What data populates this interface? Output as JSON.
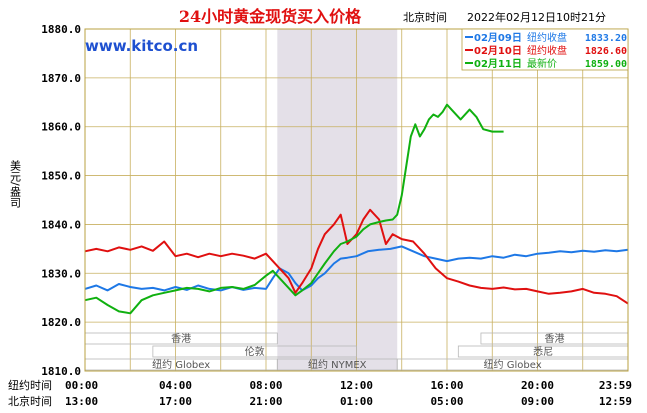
{
  "chart_data": {
    "type": "line",
    "title": "24小时黄金现货买入价格",
    "location_label": "北京时间",
    "timestamp": "2022年02月12日10时21分",
    "website": "www.kitco.cn",
    "ylabel": "美元/盎司",
    "ylim": [
      1810,
      1880
    ],
    "yticks": [
      "1810.0",
      "1820.0",
      "1830.0",
      "1840.0",
      "1850.0",
      "1860.0",
      "1870.0",
      "1880.0"
    ],
    "x_row1_label": "纽约时间",
    "x_row2_label": "北京时间",
    "x_ticks_ny": [
      "00:00",
      "04:00",
      "08:00",
      "12:00",
      "16:00",
      "20:00",
      "23:59"
    ],
    "x_ticks_bj": [
      "13:00",
      "17:00",
      "21:00",
      "01:00",
      "05:00",
      "09:00",
      "12:59"
    ],
    "session_shading": [
      8.5,
      13.8
    ],
    "markets_upper": [
      {
        "label": "香港",
        "start": 0,
        "end": 8.5
      },
      {
        "label": "香港",
        "start": 17.5,
        "end": 24
      }
    ],
    "markets_middle": [
      {
        "label": "伦敦",
        "start": 3,
        "end": 12
      },
      {
        "label": "悉尼",
        "start": 16.5,
        "end": 24
      }
    ],
    "markets_lower": [
      {
        "label": "纽约 Globex",
        "start": 0,
        "end": 8.5
      },
      {
        "label": "纽约 NYMEX",
        "start": 8.5,
        "end": 13.8
      },
      {
        "label": "纽约 Globex",
        "start": 13.8,
        "end": 24
      }
    ],
    "legend": [
      {
        "date": "02月09日",
        "label": "纽约收盘",
        "value": "1833.20",
        "color": "#1e78e6"
      },
      {
        "date": "02月10日",
        "label": "纽约收盘",
        "value": "1826.60",
        "color": "#e01010"
      },
      {
        "date": "02月11日",
        "label": "最新价",
        "value": "1859.00",
        "color": "#10b010"
      }
    ],
    "series": [
      {
        "color": "#1e78e6",
        "x": [
          0,
          0.5,
          1,
          1.5,
          2,
          2.5,
          3,
          3.5,
          4,
          4.5,
          5,
          5.5,
          6,
          6.5,
          7,
          7.5,
          8,
          8.3,
          8.6,
          9,
          9.3,
          9.6,
          10,
          10.3,
          10.6,
          11,
          11.3,
          11.6,
          12,
          12.5,
          13,
          13.5,
          14,
          14.5,
          15,
          15.5,
          16,
          16.5,
          17,
          17.5,
          18,
          18.5,
          19,
          19.5,
          20,
          20.5,
          21,
          21.5,
          22,
          22.5,
          23,
          23.5,
          24
        ],
        "y": [
          1826.8,
          1827.5,
          1826.5,
          1827.8,
          1827.2,
          1826.8,
          1827,
          1826.5,
          1827.2,
          1826.6,
          1827.5,
          1826.8,
          1826.5,
          1827.2,
          1826.6,
          1827,
          1826.8,
          1829,
          1831,
          1830,
          1828,
          1826.5,
          1827.5,
          1829,
          1830,
          1832,
          1833,
          1833.2,
          1833.5,
          1834.5,
          1834.8,
          1835,
          1835.5,
          1834.5,
          1833.5,
          1833,
          1832.5,
          1833,
          1833.2,
          1833,
          1833.5,
          1833.2,
          1833.8,
          1833.5,
          1834,
          1834.2,
          1834.5,
          1834.3,
          1834.6,
          1834.4,
          1834.7,
          1834.5,
          1834.8
        ]
      },
      {
        "color": "#e01010",
        "x": [
          0,
          0.5,
          1,
          1.5,
          2,
          2.5,
          3,
          3.5,
          4,
          4.5,
          5,
          5.5,
          6,
          6.5,
          7,
          7.5,
          8,
          8.3,
          8.6,
          9,
          9.3,
          9.6,
          10,
          10.3,
          10.6,
          11,
          11.3,
          11.6,
          12,
          12.3,
          12.6,
          13,
          13.3,
          13.6,
          14,
          14.5,
          15,
          15.5,
          16,
          16.5,
          17,
          17.5,
          18,
          18.5,
          19,
          19.5,
          20,
          20.5,
          21,
          21.5,
          22,
          22.5,
          23,
          23.5,
          24
        ],
        "y": [
          1834.5,
          1835,
          1834.5,
          1835.3,
          1834.8,
          1835.5,
          1834.6,
          1836.5,
          1833.5,
          1834,
          1833.3,
          1834,
          1833.5,
          1834,
          1833.6,
          1833,
          1834,
          1832.5,
          1831,
          1829,
          1826,
          1828,
          1831,
          1835,
          1838,
          1840,
          1842,
          1836,
          1838,
          1841,
          1843,
          1841,
          1836,
          1838,
          1837,
          1836.5,
          1834,
          1831,
          1829,
          1828.3,
          1827.5,
          1827,
          1826.8,
          1827.1,
          1826.7,
          1826.8,
          1826.3,
          1825.8,
          1826,
          1826.3,
          1826.8,
          1826,
          1825.8,
          1825.3,
          1823.8
        ]
      },
      {
        "color": "#10b010",
        "x": [
          0,
          0.5,
          1,
          1.5,
          2,
          2.5,
          3,
          3.5,
          4,
          4.5,
          5,
          5.5,
          6,
          6.5,
          7,
          7.5,
          8,
          8.3,
          8.6,
          9,
          9.3,
          9.6,
          10,
          10.3,
          10.6,
          11,
          11.3,
          11.6,
          12,
          12.3,
          12.6,
          13,
          13.3,
          13.6,
          13.8,
          14,
          14.2,
          14.4,
          14.6,
          14.8,
          15,
          15.2,
          15.4,
          15.6,
          15.8,
          16,
          16.3,
          16.6,
          17,
          17.3,
          17.6,
          18,
          18.5
        ],
        "y": [
          1824.5,
          1825,
          1823.5,
          1822.2,
          1821.8,
          1824.5,
          1825.5,
          1826,
          1826.5,
          1827,
          1826.8,
          1826.3,
          1827,
          1827.2,
          1826.8,
          1827.6,
          1829.5,
          1830.5,
          1829,
          1827,
          1825.5,
          1826.5,
          1828,
          1830,
          1832,
          1834.5,
          1836,
          1836.5,
          1837.5,
          1839,
          1840,
          1840.5,
          1840.8,
          1841,
          1842,
          1846,
          1852,
          1858,
          1860.5,
          1858,
          1859.5,
          1861.5,
          1862.5,
          1862,
          1863,
          1864.5,
          1863,
          1861.5,
          1863.5,
          1862,
          1859.5,
          1859,
          1859
        ]
      }
    ]
  }
}
